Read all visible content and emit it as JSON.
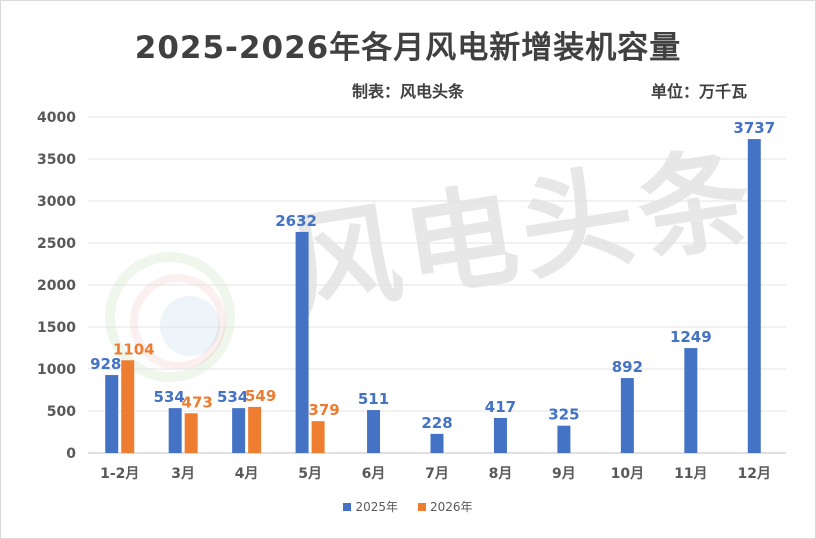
{
  "header": {
    "title": "2025-2026年各月风电新增装机容量",
    "source": "制表：风电头条",
    "unit": "单位：万千瓦"
  },
  "watermark": {
    "text": "风电头条"
  },
  "chart_data": {
    "type": "bar",
    "categories": [
      "1-2月",
      "3月",
      "4月",
      "5月",
      "6月",
      "7月",
      "8月",
      "9月",
      "10月",
      "11月",
      "12月"
    ],
    "series": [
      {
        "name": "2025年",
        "color": "#4472c4",
        "values": [
          928,
          534,
          534,
          2632,
          511,
          228,
          417,
          325,
          892,
          1249,
          3737
        ]
      },
      {
        "name": "2026年",
        "color": "#ed7d31",
        "values": [
          1104,
          473,
          549,
          379,
          null,
          null,
          null,
          null,
          null,
          null,
          null
        ]
      }
    ],
    "ylim": [
      0,
      4000
    ],
    "yticks": [
      0,
      500,
      1000,
      1500,
      2000,
      2500,
      3000,
      3500,
      4000
    ],
    "grid": true,
    "legend_position": "bottom"
  }
}
